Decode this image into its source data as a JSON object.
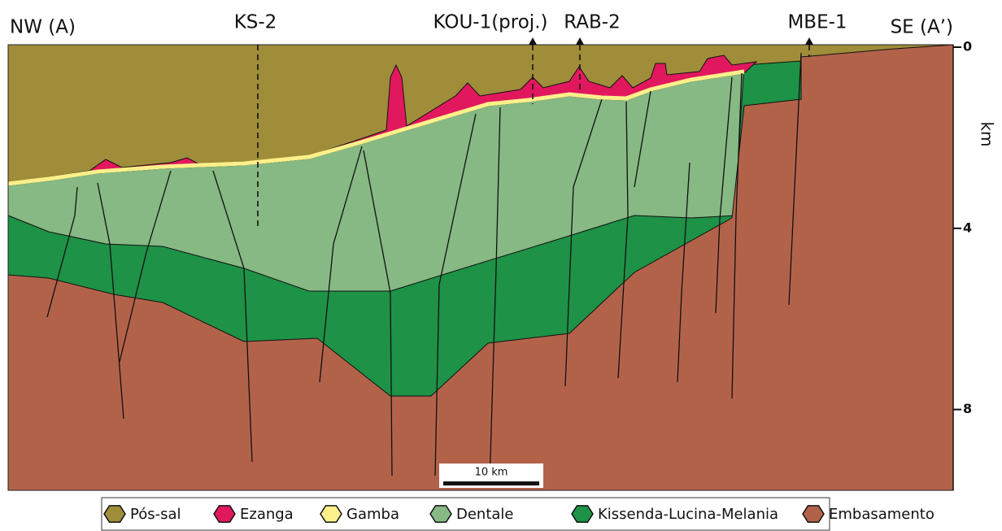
{
  "section": {
    "left_label": "NW (A)",
    "right_label": "SE (A’)",
    "wells": [
      {
        "label": "KS-2"
      },
      {
        "label": "KOU-1(proj.)"
      },
      {
        "label": "RAB-2"
      },
      {
        "label": "MBE-1"
      }
    ],
    "depth_axis": {
      "unit": "km",
      "ticks": [
        0,
        4,
        8
      ]
    },
    "scale_bar": "10 km"
  },
  "legend": [
    {
      "label": "Pós-sal",
      "color": "#a08d3a"
    },
    {
      "label": "Ezanga",
      "color": "#e2185f"
    },
    {
      "label": "Gamba",
      "color": "#fdf08a"
    },
    {
      "label": "Dentale",
      "color": "#86b983"
    },
    {
      "label": "Kissenda-Lucina-Melania",
      "color": "#1e9246"
    },
    {
      "label": "Embasamento",
      "color": "#b3624a"
    }
  ]
}
